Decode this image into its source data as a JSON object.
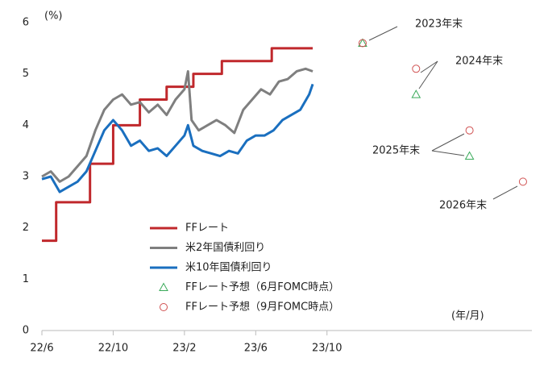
{
  "chart_data": {
    "type": "line",
    "y_unit": "(%)",
    "x_unit": "(年/月)",
    "xlim": [
      0,
      27.5
    ],
    "ylim": [
      0,
      6
    ],
    "yticks": [
      0,
      1,
      2,
      3,
      4,
      5,
      6
    ],
    "xticks": [
      {
        "value": 0,
        "label": "22/6"
      },
      {
        "value": 4,
        "label": "22/10"
      },
      {
        "value": 8,
        "label": "23/2"
      },
      {
        "value": 12,
        "label": "23/6"
      },
      {
        "value": 16,
        "label": "23/10"
      }
    ],
    "series": [
      {
        "name": "FFレート",
        "color": "#c0282c",
        "kind": "line",
        "width": 3,
        "x": [
          0,
          0.8,
          0.8,
          2.7,
          2.7,
          4.0,
          4.0,
          5.5,
          5.5,
          7.0,
          7.0,
          8.5,
          8.5,
          10.1,
          10.1,
          12.9,
          12.9,
          15.2
        ],
        "values": [
          1.75,
          1.75,
          2.5,
          2.5,
          3.25,
          3.25,
          4,
          4,
          4.5,
          4.5,
          4.75,
          4.75,
          5,
          5,
          5.25,
          5.25,
          5.5,
          5.5
        ]
      },
      {
        "name": "米2年国債利回り",
        "color": "#7f7f7f",
        "kind": "line",
        "width": 3,
        "x": [
          0,
          0.5,
          1,
          1.5,
          2,
          2.5,
          3,
          3.5,
          4,
          4.5,
          5,
          5.5,
          6,
          6.5,
          7,
          7.5,
          8,
          8.2,
          8.4,
          8.8,
          9.3,
          9.8,
          10.3,
          10.8,
          11.3,
          11.8,
          12.3,
          12.8,
          13.3,
          13.8,
          14.3,
          14.8,
          15.2
        ],
        "values": [
          3.0,
          3.1,
          2.9,
          3.0,
          3.2,
          3.4,
          3.9,
          4.3,
          4.5,
          4.6,
          4.4,
          4.45,
          4.25,
          4.4,
          4.2,
          4.5,
          4.7,
          5.05,
          4.1,
          3.9,
          4.0,
          4.1,
          4.0,
          3.85,
          4.3,
          4.5,
          4.7,
          4.6,
          4.85,
          4.9,
          5.05,
          5.1,
          5.05
        ]
      },
      {
        "name": "米10年国債利回り",
        "color": "#1a6fbf",
        "kind": "line",
        "width": 3,
        "x": [
          0,
          0.5,
          1,
          1.5,
          2,
          2.5,
          3,
          3.5,
          4,
          4.5,
          5,
          5.5,
          6,
          6.5,
          7,
          7.5,
          8,
          8.2,
          8.5,
          9,
          9.5,
          10,
          10.5,
          11,
          11.5,
          12,
          12.5,
          13,
          13.5,
          14,
          14.5,
          15,
          15.2
        ],
        "values": [
          2.95,
          3.0,
          2.7,
          2.8,
          2.9,
          3.1,
          3.5,
          3.9,
          4.1,
          3.9,
          3.6,
          3.7,
          3.5,
          3.55,
          3.4,
          3.6,
          3.8,
          4.0,
          3.6,
          3.5,
          3.45,
          3.4,
          3.5,
          3.45,
          3.7,
          3.8,
          3.8,
          3.9,
          4.1,
          4.2,
          4.3,
          4.6,
          4.8
        ]
      },
      {
        "name": "FFレート予想（6月FOMC時点）",
        "color": "#3aaa5a",
        "kind": "triangle",
        "x": [
          18,
          21,
          24
        ],
        "values": [
          5.6,
          4.6,
          3.4
        ]
      },
      {
        "name": "FFレート予想（9月FOMC時点）",
        "color": "#d05050",
        "kind": "circle",
        "x": [
          18,
          21,
          24,
          27
        ],
        "values": [
          5.6,
          5.1,
          3.9,
          2.9
        ]
      }
    ],
    "annotations": [
      "2023年末",
      "2024年末",
      "2025年末",
      "2026年末"
    ]
  }
}
